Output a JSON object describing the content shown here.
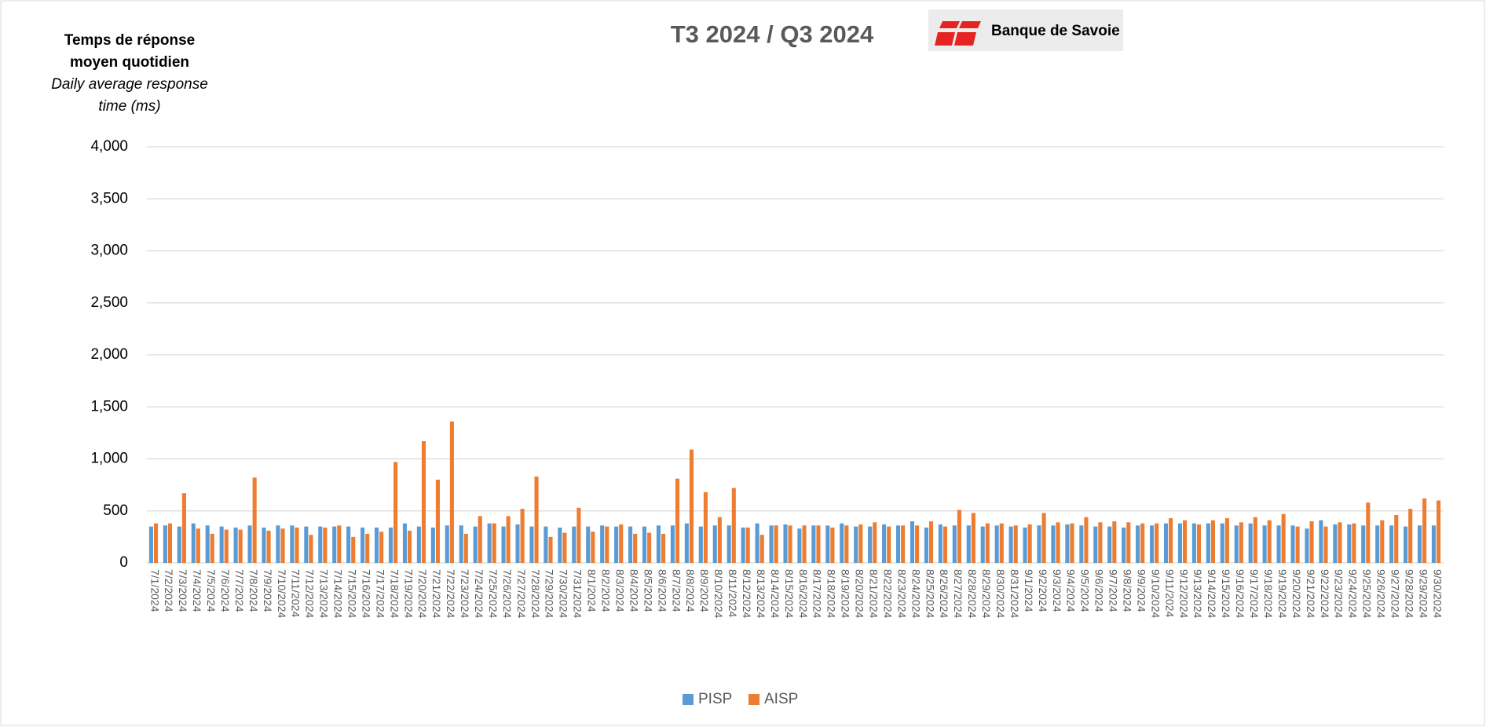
{
  "chart_data": {
    "type": "bar",
    "title": "T3 2024 / Q3 2024",
    "logo": "Banque de Savoie",
    "y_label": "Temps de réponse moyen quotidien",
    "y_label_en": "Daily average response time (ms)",
    "categories": [
      "7/1/2024",
      "7/2/2024",
      "7/3/2024",
      "7/4/2024",
      "7/5/2024",
      "7/6/2024",
      "7/7/2024",
      "7/8/2024",
      "7/9/2024",
      "7/10/2024",
      "7/11/2024",
      "7/12/2024",
      "7/13/2024",
      "7/14/2024",
      "7/15/2024",
      "7/16/2024",
      "7/17/2024",
      "7/18/2024",
      "7/19/2024",
      "7/20/2024",
      "7/21/2024",
      "7/22/2024",
      "7/23/2024",
      "7/24/2024",
      "7/25/2024",
      "7/26/2024",
      "7/27/2024",
      "7/28/2024",
      "7/29/2024",
      "7/30/2024",
      "7/31/2024",
      "8/1/2024",
      "8/2/2024",
      "8/3/2024",
      "8/4/2024",
      "8/5/2024",
      "8/6/2024",
      "8/7/2024",
      "8/8/2024",
      "8/9/2024",
      "8/10/2024",
      "8/11/2024",
      "8/12/2024",
      "8/13/2024",
      "8/14/2024",
      "8/15/2024",
      "8/16/2024",
      "8/17/2024",
      "8/18/2024",
      "8/19/2024",
      "8/20/2024",
      "8/21/2024",
      "8/22/2024",
      "8/23/2024",
      "8/24/2024",
      "8/25/2024",
      "8/26/2024",
      "8/27/2024",
      "8/28/2024",
      "8/29/2024",
      "8/30/2024",
      "8/31/2024",
      "9/1/2024",
      "9/2/2024",
      "9/3/2024",
      "9/4/2024",
      "9/5/2024",
      "9/6/2024",
      "9/7/2024",
      "9/8/2024",
      "9/9/2024",
      "9/10/2024",
      "9/11/2024",
      "9/12/2024",
      "9/13/2024",
      "9/14/2024",
      "9/15/2024",
      "9/16/2024",
      "9/17/2024",
      "9/18/2024",
      "9/19/2024",
      "9/20/2024",
      "9/21/2024",
      "9/22/2024",
      "9/23/2024",
      "9/24/2024",
      "9/25/2024",
      "9/26/2024",
      "9/27/2024",
      "9/28/2024",
      "9/29/2024",
      "9/30/2024"
    ],
    "series": [
      {
        "name": "PISP",
        "color": "#5b9bd5",
        "values": [
          350,
          360,
          350,
          380,
          360,
          350,
          340,
          360,
          340,
          360,
          360,
          350,
          350,
          350,
          350,
          340,
          340,
          340,
          380,
          350,
          340,
          360,
          360,
          350,
          380,
          350,
          370,
          350,
          350,
          340,
          350,
          350,
          360,
          350,
          350,
          350,
          360,
          360,
          380,
          350,
          360,
          360,
          340,
          380,
          360,
          370,
          330,
          360,
          360,
          380,
          350,
          350,
          370,
          360,
          400,
          340,
          370,
          360,
          360,
          350,
          360,
          350,
          340,
          360,
          360,
          370,
          360,
          350,
          350,
          340,
          360,
          360,
          380,
          380,
          380,
          380,
          380,
          360,
          380,
          360,
          360,
          360,
          330,
          410,
          370,
          370,
          360,
          360,
          360,
          350,
          360,
          360
        ]
      },
      {
        "name": "AISP",
        "color": "#ed7d31",
        "values": [
          380,
          380,
          670,
          330,
          280,
          320,
          320,
          820,
          310,
          330,
          340,
          270,
          340,
          360,
          250,
          280,
          300,
          970,
          310,
          1170,
          800,
          1360,
          280,
          450,
          380,
          450,
          520,
          830,
          250,
          290,
          530,
          300,
          350,
          370,
          280,
          290,
          280,
          810,
          1090,
          680,
          440,
          720,
          340,
          270,
          360,
          360,
          360,
          360,
          340,
          360,
          370,
          390,
          350,
          360,
          360,
          400,
          350,
          510,
          480,
          380,
          380,
          360,
          370,
          480,
          390,
          380,
          440,
          390,
          400,
          390,
          380,
          380,
          430,
          410,
          370,
          410,
          430,
          390,
          440,
          410,
          470,
          350,
          400,
          350,
          390,
          380,
          580,
          410,
          460,
          520,
          620,
          600
        ]
      }
    ],
    "ylim": [
      0,
      4000
    ],
    "yticks": [
      0,
      500,
      {
        "value": 1000,
        "label": "1,000"
      },
      {
        "value": 1500,
        "label": "1,500"
      },
      {
        "value": 2000,
        "label": "2,000"
      },
      {
        "value": 2500,
        "label": "2,500"
      },
      {
        "value": 3000,
        "label": "3,000"
      },
      {
        "value": 3500,
        "label": "3,500"
      },
      {
        "value": 4000,
        "label": "4,000"
      }
    ],
    "grid": true,
    "legend": "bottom"
  }
}
